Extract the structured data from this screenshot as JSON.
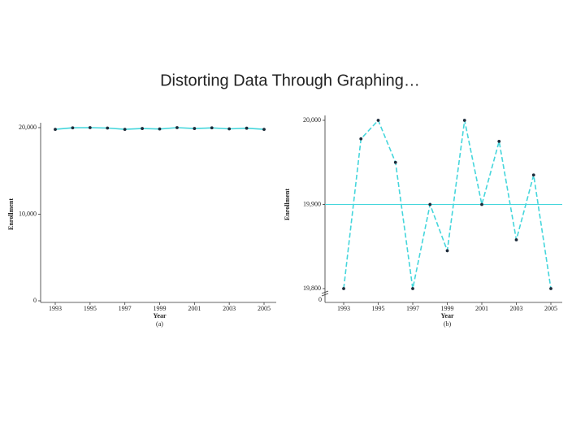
{
  "title": "Distorting Data Through Graphing…",
  "chart_data": [
    {
      "type": "line",
      "xlabel": "Year",
      "ylabel": "Enrollment",
      "caption": "(a)",
      "x": [
        1993,
        1994,
        1995,
        1996,
        1997,
        1998,
        1999,
        2000,
        2001,
        2002,
        2003,
        2004,
        2005
      ],
      "series": [
        {
          "name": "Enrollment",
          "color": "#45d6dc",
          "dashed": false,
          "values": [
            19800,
            19978,
            20000,
            19950,
            19800,
            19900,
            19845,
            20000,
            19900,
            19975,
            19858,
            19935,
            19800
          ]
        }
      ],
      "xlim": [
        1992.5,
        2005.5
      ],
      "xticks": [
        1993,
        1995,
        1997,
        1999,
        2001,
        2003,
        2005
      ],
      "ylim": [
        0,
        20000
      ],
      "yticks": [
        0,
        {
          "value": 10000,
          "label": "10,000"
        },
        {
          "value": 20000,
          "label": "20,000"
        }
      ],
      "grid": false
    },
    {
      "type": "line",
      "xlabel": "Year",
      "ylabel": "Enrollment",
      "caption": "(b)",
      "x": [
        1993,
        1994,
        1995,
        1996,
        1997,
        1998,
        1999,
        2000,
        2001,
        2002,
        2003,
        2004,
        2005
      ],
      "series": [
        {
          "name": "Enrollment",
          "color": "#45d6dc",
          "dashed": true,
          "values": [
            19800,
            19978,
            20000,
            19950,
            19800,
            19900,
            19845,
            20000,
            19900,
            19975,
            19858,
            19935,
            19800
          ]
        }
      ],
      "xlim": [
        1992.5,
        2005.5
      ],
      "xticks": [
        1993,
        1995,
        1997,
        1999,
        2001,
        2003,
        2005
      ],
      "ylim": [
        19800,
        20000
      ],
      "yticks": [
        {
          "value": 19800,
          "label": "19,800"
        },
        {
          "value": 19900,
          "label": "19,900"
        },
        {
          "value": 20000,
          "label": "20,000"
        }
      ],
      "axis_break_label": "0",
      "hline": 19900,
      "grid": false
    }
  ]
}
